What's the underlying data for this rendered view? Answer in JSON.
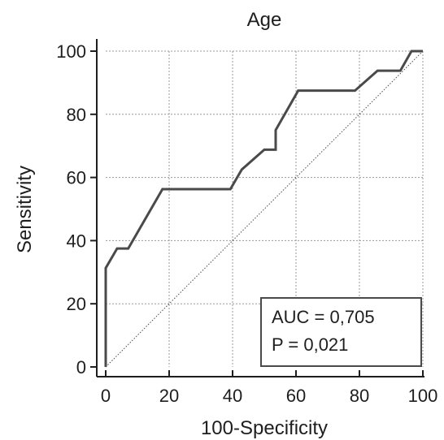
{
  "chart_data": {
    "type": "line",
    "title": "Age",
    "xlabel": "100-Specificity",
    "ylabel": "Sensitivity",
    "xlim": [
      0,
      100
    ],
    "ylim": [
      0,
      100
    ],
    "x_ticks": [
      "0",
      "20",
      "40",
      "60",
      "80",
      "100"
    ],
    "y_ticks": [
      "0",
      "20",
      "40",
      "60",
      "80",
      "100"
    ],
    "grid": true,
    "series": [
      {
        "values": [
          [
            0,
            0
          ],
          [
            0,
            31.3
          ],
          [
            3.6,
            37.5
          ],
          [
            7.1,
            37.5
          ],
          [
            17.9,
            56.3
          ],
          [
            39.3,
            56.3
          ],
          [
            42.9,
            62.5
          ],
          [
            50.0,
            68.8
          ],
          [
            53.6,
            68.8
          ],
          [
            53.6,
            75.0
          ],
          [
            60.7,
            87.5
          ],
          [
            78.6,
            87.5
          ],
          [
            85.7,
            93.8
          ],
          [
            92.9,
            93.8
          ],
          [
            96.4,
            100
          ],
          [
            100,
            100
          ]
        ]
      }
    ],
    "reference_line": [
      [
        0,
        0
      ],
      [
        100,
        100
      ]
    ],
    "annotation": {
      "auc": "AUC = 0,705",
      "p": "P = 0,021"
    },
    "colors": {
      "curve": "#4a4a4a",
      "reference": "#4a4a4a",
      "grid": "#9a9a9a",
      "axis": "#1e1e1e"
    }
  }
}
